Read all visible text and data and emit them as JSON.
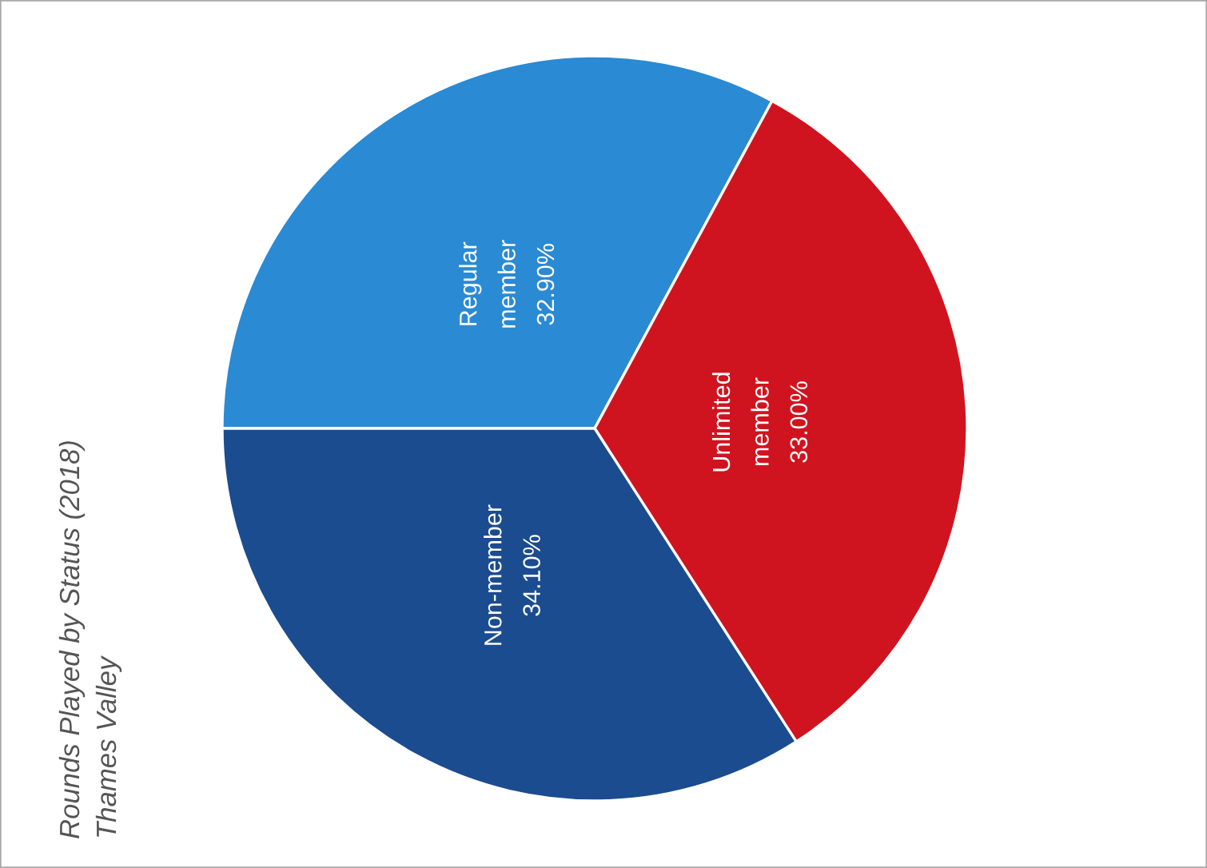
{
  "chart_data": {
    "type": "pie",
    "title": "Rounds Played by Status (2018)",
    "subtitle": "Thames Valley",
    "categories": [
      "Regular member",
      "Unlimited member",
      "Non-member"
    ],
    "values": [
      32.9,
      33.0,
      34.1
    ],
    "colors": [
      "#2a8ad3",
      "#d0141f",
      "#1b4c8f"
    ],
    "value_labels": [
      "32.90%",
      "33.00%",
      "34.10%"
    ]
  }
}
